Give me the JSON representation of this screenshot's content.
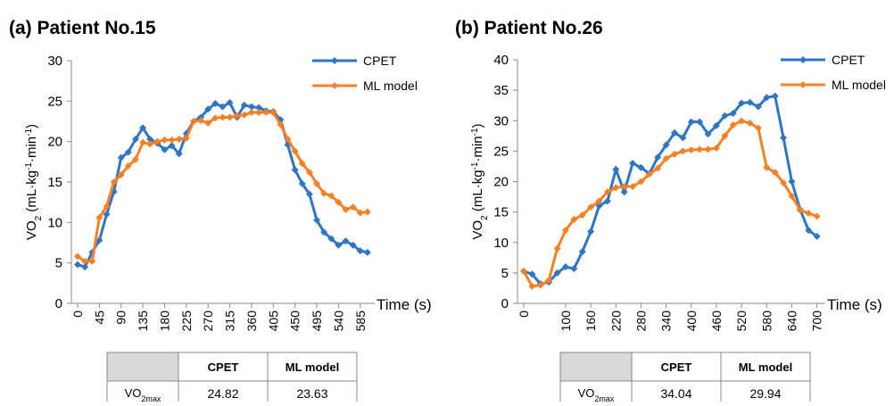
{
  "chart_data": [
    {
      "type": "line",
      "title": "(a) Patient No.15",
      "ylabel_parts": [
        "VO",
        "2",
        " (mL·kg",
        "-1",
        "·min",
        "-1",
        ")"
      ],
      "xlabel": "Time (s)",
      "x": [
        0,
        15,
        30,
        45,
        60,
        75,
        90,
        105,
        120,
        135,
        150,
        165,
        180,
        195,
        210,
        225,
        240,
        255,
        270,
        285,
        300,
        315,
        330,
        345,
        360,
        375,
        390,
        405,
        420,
        435,
        450,
        465,
        480,
        495,
        510,
        525,
        540,
        555,
        570,
        585,
        600
      ],
      "series": [
        {
          "name": "CPET",
          "color": "#2e75c6",
          "values": [
            4.8,
            4.5,
            6.3,
            7.8,
            11,
            13.8,
            18,
            18.7,
            20.3,
            21.7,
            20.3,
            19.8,
            19,
            19.5,
            18.5,
            21,
            22.5,
            23,
            24,
            24.7,
            24.3,
            24.82,
            23,
            24.5,
            24.3,
            24.2,
            23.8,
            23.7,
            22.7,
            19.6,
            16.5,
            14.8,
            13.5,
            10.3,
            8.8,
            8,
            7.2,
            7.7,
            7.2,
            6.5,
            6.3
          ]
        },
        {
          "name": "ML model",
          "color": "#f58025",
          "values": [
            5.8,
            5.2,
            5.2,
            10.6,
            12,
            15,
            15.9,
            17,
            17.8,
            19.9,
            19.7,
            20,
            20.2,
            20.2,
            20.3,
            20.4,
            22.5,
            22.6,
            22.3,
            22.9,
            23,
            23,
            23.2,
            23.3,
            23.6,
            23.6,
            23.63,
            23.6,
            22.1,
            20.3,
            18.8,
            17.3,
            16.2,
            14.8,
            13.6,
            13.3,
            12.5,
            11.6,
            11.9,
            11.2,
            11.3
          ]
        }
      ],
      "xlim": [
        0,
        615
      ],
      "xticks": [
        0,
        45,
        90,
        135,
        180,
        225,
        270,
        315,
        360,
        405,
        450,
        495,
        540,
        585
      ],
      "ylim": [
        0,
        30
      ],
      "yticks": [
        0,
        5,
        10,
        15,
        20,
        25,
        30
      ]
    },
    {
      "type": "line",
      "title": "(b) Patient No.26",
      "ylabel_parts": [
        "VO",
        "2",
        " (mL·kg",
        "-1",
        "·min",
        "-1",
        ")"
      ],
      "xlabel": "Time (s)",
      "x": [
        0,
        20,
        40,
        60,
        80,
        100,
        120,
        140,
        160,
        180,
        200,
        220,
        240,
        260,
        280,
        300,
        320,
        340,
        360,
        380,
        400,
        420,
        440,
        460,
        480,
        500,
        520,
        540,
        560,
        580,
        600,
        620,
        640,
        660,
        680,
        700
      ],
      "series": [
        {
          "name": "CPET",
          "color": "#2e75c6",
          "values": [
            5.3,
            4.8,
            3.2,
            3.5,
            5,
            6,
            5.7,
            8.5,
            11.8,
            16,
            16.8,
            22,
            18.3,
            23,
            22.3,
            21.3,
            24,
            26,
            28,
            27.2,
            29.8,
            29.8,
            27.8,
            29.2,
            30.8,
            31.2,
            32.9,
            33,
            32.3,
            33.8,
            34.04,
            27.2,
            20,
            15.4,
            12,
            11
          ]
        },
        {
          "name": "ML model",
          "color": "#f58025",
          "values": [
            5.3,
            2.8,
            3,
            3.8,
            9,
            12,
            13.8,
            14.5,
            15.8,
            16.8,
            18.3,
            19,
            19.2,
            19.2,
            20,
            21.2,
            22.2,
            23.8,
            24.5,
            25,
            25.2,
            25.3,
            25.3,
            25.5,
            27.5,
            29.3,
            29.94,
            29.6,
            28.8,
            22.3,
            21.5,
            19.8,
            17.6,
            15.3,
            14.8,
            14.3
          ]
        }
      ],
      "xlim": [
        0,
        720
      ],
      "xticks": [
        0,
        100,
        160,
        220,
        280,
        340,
        400,
        460,
        520,
        580,
        640,
        700
      ],
      "ylim": [
        0,
        40
      ],
      "yticks": [
        0,
        5,
        10,
        15,
        20,
        25,
        30,
        35,
        40
      ]
    }
  ],
  "tables": [
    {
      "header": [
        "CPET",
        "ML model"
      ],
      "row_label_parts": [
        "VO",
        "2max"
      ],
      "row": [
        24.82,
        23.63
      ]
    },
    {
      "header": [
        "CPET",
        "ML model"
      ],
      "row_label_parts": [
        "VO",
        "2max"
      ],
      "row": [
        34.04,
        29.94
      ]
    }
  ]
}
